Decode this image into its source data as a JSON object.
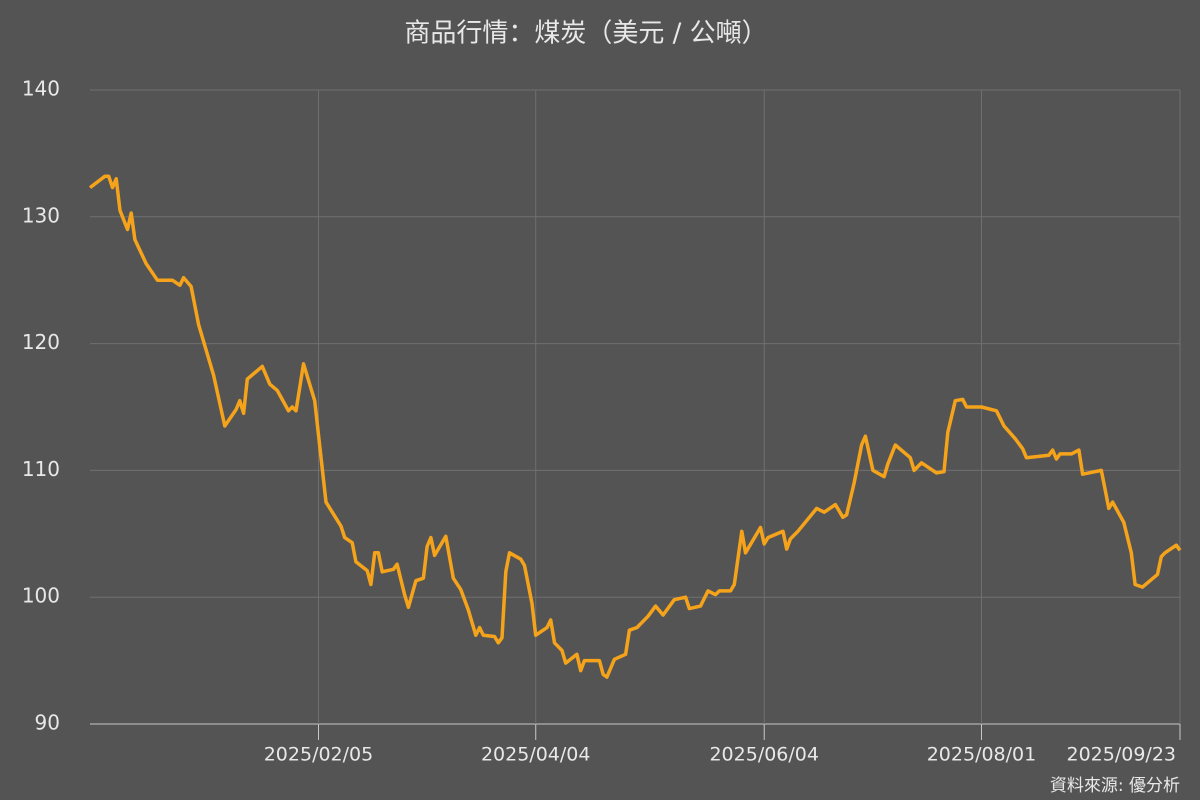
{
  "chart_data": {
    "type": "line",
    "title": "商品行情：煤炭（美元 / 公噸）",
    "source": "資料來源: 優分析",
    "x": [
      "2024/12/06",
      "2024/12/10",
      "2024/12/11",
      "2024/12/12",
      "2024/12/13",
      "2024/12/14",
      "2024/12/16",
      "2024/12/17",
      "2024/12/18",
      "2024/12/21",
      "2024/12/24",
      "2024/12/28",
      "2024/12/30",
      "2024/12/31",
      "2025/01/02",
      "2025/01/04",
      "2025/01/08",
      "2025/01/11",
      "2025/01/14",
      "2025/01/15",
      "2025/01/16",
      "2025/01/17",
      "2025/01/21",
      "2025/01/23",
      "2025/01/25",
      "2025/01/28",
      "2025/01/29",
      "2025/01/30",
      "2025/02/01",
      "2025/02/04",
      "2025/02/05",
      "2025/02/07",
      "2025/02/11",
      "2025/02/12",
      "2025/02/14",
      "2025/02/15",
      "2025/02/18",
      "2025/02/19",
      "2025/02/20",
      "2025/02/21",
      "2025/02/22",
      "2025/02/25",
      "2025/02/26",
      "2025/02/28",
      "2025/03/01",
      "2025/03/03",
      "2025/03/05",
      "2025/03/06",
      "2025/03/07",
      "2025/03/08",
      "2025/03/11",
      "2025/03/13",
      "2025/03/15",
      "2025/03/17",
      "2025/03/19",
      "2025/03/20",
      "2025/03/21",
      "2025/03/24",
      "2025/03/25",
      "2025/03/26",
      "2025/03/27",
      "2025/03/28",
      "2025/03/31",
      "2025/04/01",
      "2025/04/03",
      "2025/04/04",
      "2025/04/07",
      "2025/04/08",
      "2025/04/09",
      "2025/04/11",
      "2025/04/12",
      "2025/04/15",
      "2025/04/16",
      "2025/04/17",
      "2025/04/21",
      "2025/04/22",
      "2025/04/23",
      "2025/04/25",
      "2025/04/28",
      "2025/04/29",
      "2025/05/01",
      "2025/05/04",
      "2025/05/06",
      "2025/05/08",
      "2025/05/11",
      "2025/05/14",
      "2025/05/15",
      "2025/05/18",
      "2025/05/20",
      "2025/05/22",
      "2025/05/23",
      "2025/05/26",
      "2025/05/27",
      "2025/05/29",
      "2025/05/30",
      "2025/06/03",
      "2025/06/04",
      "2025/06/05",
      "2025/06/09",
      "2025/06/10",
      "2025/06/11",
      "2025/06/13",
      "2025/06/18",
      "2025/06/20",
      "2025/06/23",
      "2025/06/25",
      "2025/06/26",
      "2025/06/28",
      "2025/06/30",
      "2025/07/01",
      "2025/07/03",
      "2025/07/06",
      "2025/07/07",
      "2025/07/09",
      "2025/07/13",
      "2025/07/14",
      "2025/07/16",
      "2025/07/20",
      "2025/07/22",
      "2025/07/23",
      "2025/07/25",
      "2025/07/27",
      "2025/07/28",
      "2025/08/01",
      "2025/08/05",
      "2025/08/07",
      "2025/08/10",
      "2025/08/12",
      "2025/08/13",
      "2025/08/19",
      "2025/08/20",
      "2025/08/21",
      "2025/08/22",
      "2025/08/25",
      "2025/08/27",
      "2025/08/28",
      "2025/09/02",
      "2025/09/03",
      "2025/09/04",
      "2025/09/05",
      "2025/09/08",
      "2025/09/10",
      "2025/09/11",
      "2025/09/13",
      "2025/09/17",
      "2025/09/18",
      "2025/09/19",
      "2025/09/22",
      "2025/09/23"
    ],
    "series": [
      {
        "color": "#f5a31a",
        "values": [
          132.3,
          133.2,
          133.2,
          132.3,
          133.0,
          130.5,
          129.0,
          130.3,
          128.2,
          126.3,
          125.0,
          125.0,
          124.6,
          125.2,
          124.5,
          121.5,
          117.5,
          113.5,
          114.8,
          115.5,
          114.5,
          117.2,
          118.2,
          116.8,
          116.3,
          114.7,
          115.0,
          114.7,
          118.4,
          115.5,
          112.8,
          107.5,
          105.6,
          104.7,
          104.3,
          102.8,
          102.1,
          101.0,
          103.5,
          103.5,
          102.0,
          102.2,
          102.6,
          100.2,
          99.2,
          101.3,
          101.5,
          104.0,
          104.7,
          103.3,
          104.8,
          101.5,
          100.6,
          99.0,
          97.0,
          97.6,
          97.0,
          96.9,
          96.4,
          96.8,
          102.0,
          103.5,
          103.0,
          102.5,
          99.5,
          97.0,
          97.6,
          98.2,
          96.4,
          95.8,
          94.8,
          95.5,
          94.2,
          95.0,
          95.0,
          93.9,
          93.7,
          95.1,
          95.5,
          97.4,
          97.6,
          98.5,
          99.3,
          98.6,
          99.8,
          100.0,
          99.1,
          99.3,
          100.5,
          100.2,
          100.5,
          100.5,
          101.0,
          105.2,
          103.5,
          105.5,
          104.2,
          104.7,
          105.2,
          103.8,
          104.6,
          105.2,
          107.0,
          106.7,
          107.3,
          106.3,
          106.5,
          109.0,
          112.0,
          112.7,
          110.0,
          109.5,
          110.5,
          112.0,
          111.0,
          110.0,
          110.6,
          109.8,
          109.9,
          113.0,
          115.5,
          115.6,
          115.0,
          115.0,
          114.7,
          113.5,
          112.5,
          111.7,
          111.0,
          111.2,
          111.6,
          110.9,
          111.3,
          111.3,
          111.6,
          109.7,
          110.0,
          108.5,
          107.0,
          107.5,
          105.9,
          103.5,
          101.0,
          100.8,
          101.8,
          103.2,
          103.5,
          104.1,
          103.7
        ]
      }
    ],
    "xlim": [
      "2024/12/06",
      "2025/09/23"
    ],
    "xticks": [
      "2025/02/05",
      "2025/04/04",
      "2025/06/04",
      "2025/08/01",
      "2025/09/23"
    ],
    "ylim": [
      90,
      140
    ],
    "yticks": [
      90,
      100,
      110,
      120,
      130,
      140
    ],
    "grid": true
  }
}
